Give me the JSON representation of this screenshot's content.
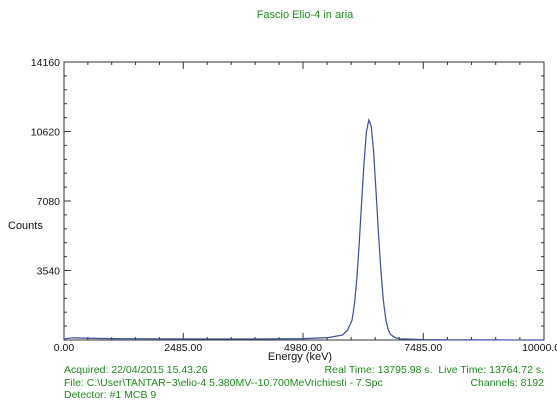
{
  "colors": {
    "title": "#1e8a1e",
    "info": "#1e8a1e",
    "axis": "#333333",
    "series": "#3a4f9e",
    "text": "#111111"
  },
  "chart_data": {
    "type": "line",
    "title": "Fascio Elio-4 in aria",
    "xlabel": "Energy (keV)",
    "ylabel": "Counts",
    "xlim": [
      0,
      10000
    ],
    "ylim": [
      0,
      14160
    ],
    "xticks": [
      0,
      2485,
      4980,
      7485,
      10000
    ],
    "xtick_labels": [
      "0.00",
      "2485.00",
      "4980.00",
      "7485.00",
      "10000.00"
    ],
    "yticks": [
      3540,
      7080,
      10620,
      14160
    ],
    "ytick_labels": [
      "3540",
      "7080",
      "10620",
      "14160"
    ],
    "grid": false,
    "series": [
      {
        "x": [
          0,
          200,
          500,
          1000,
          2000,
          3000,
          4000,
          5000,
          5500,
          5800,
          5900,
          6000,
          6050,
          6100,
          6150,
          6200,
          6250,
          6300,
          6350,
          6400,
          6450,
          6500,
          6550,
          6600,
          6650,
          6700,
          6750,
          6800,
          6900,
          7000,
          7500,
          8000,
          9000,
          10000
        ],
        "y": [
          60,
          110,
          90,
          70,
          60,
          55,
          55,
          70,
          120,
          250,
          480,
          1000,
          1800,
          3100,
          4900,
          7000,
          9000,
          10600,
          11200,
          10900,
          9600,
          7600,
          5500,
          3600,
          2100,
          1100,
          560,
          290,
          120,
          60,
          20,
          10,
          5,
          0
        ]
      }
    ]
  },
  "info": {
    "acquired": "Acquired:  22/04/2015 15.43.26",
    "real_time": "Real Time: 13795.98 s.",
    "live_time": "Live Time: 13764.72 s.",
    "file": "File:  C:\\User\\TANTAR~3\\elio-4 5.380MV--10.700MeVrichiesti - 7.Spc",
    "channels": "Channels:  8192",
    "detector": "Detector:  #1 MCB 9"
  }
}
